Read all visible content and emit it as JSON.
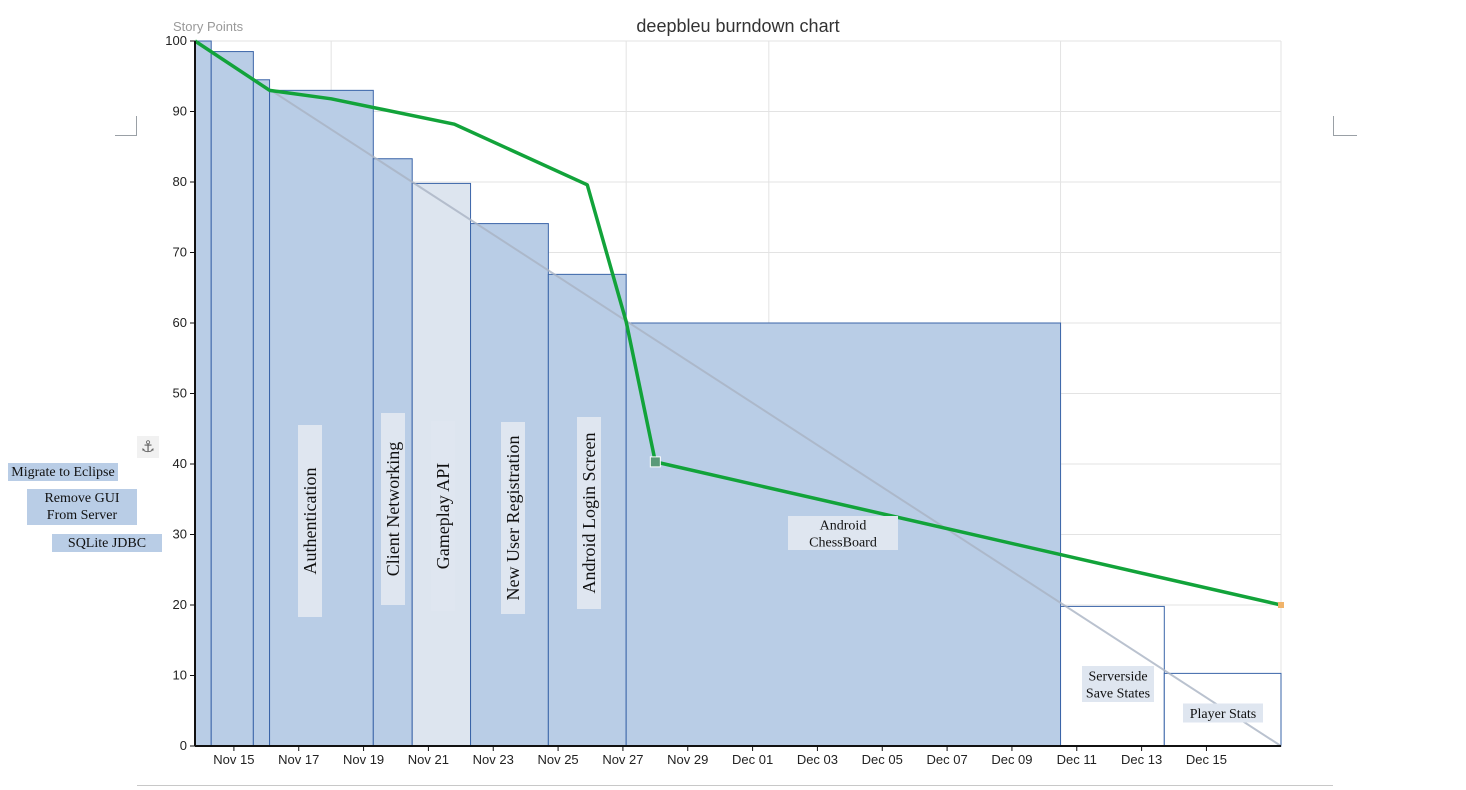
{
  "colors": {
    "bar_fill": "#b9cde6",
    "bar_light": "#dde5ef",
    "bar_stroke": "#3a64a8",
    "actual_line": "#12a33a",
    "ideal_line": "#aab4c4",
    "grid": "#e3e3e3",
    "label_box": "#dfe6f0",
    "side_box": "#b9cde6"
  },
  "icons": {
    "anchor": "anchor-icon"
  },
  "chart_data": {
    "type": "bar",
    "title": "deepbleu burndown chart",
    "ylabel": "Story Points",
    "xlabel": "",
    "ylim": [
      0,
      100
    ],
    "yticks": [
      0,
      10,
      20,
      30,
      40,
      50,
      60,
      70,
      80,
      90,
      100
    ],
    "xlim": [
      13.8,
      47.3
    ],
    "x_ticks": [
      {
        "day": 15,
        "label": "Nov 15"
      },
      {
        "day": 17,
        "label": "Nov 17"
      },
      {
        "day": 19,
        "label": "Nov 19"
      },
      {
        "day": 21,
        "label": "Nov 21"
      },
      {
        "day": 23,
        "label": "Nov 23"
      },
      {
        "day": 25,
        "label": "Nov 25"
      },
      {
        "day": 27,
        "label": "Nov 27"
      },
      {
        "day": 29,
        "label": "Nov 29"
      },
      {
        "day": 31,
        "label": "Dec 01"
      },
      {
        "day": 33,
        "label": "Dec 03"
      },
      {
        "day": 35,
        "label": "Dec 05"
      },
      {
        "day": 37,
        "label": "Dec 07"
      },
      {
        "day": 39,
        "label": "Dec 09"
      },
      {
        "day": 41,
        "label": "Dec 11"
      },
      {
        "day": 43,
        "label": "Dec 13"
      },
      {
        "day": 45,
        "label": "Dec 15"
      }
    ],
    "grid": true,
    "tasks": [
      {
        "name": "Migrate to Eclipse",
        "start": 13.8,
        "end": 14.3,
        "value": 100
      },
      {
        "name": "Remove GUI From Server",
        "start": 14.3,
        "end": 15.6,
        "value": 98.5
      },
      {
        "name": "SQLite JDBC",
        "start": 15.6,
        "end": 16.1,
        "value": 94.5
      },
      {
        "name": "Authentication",
        "start": 16.1,
        "end": 19.3,
        "value": 93
      },
      {
        "name": "Client Networking",
        "start": 19.3,
        "end": 20.5,
        "value": 83.3
      },
      {
        "name": "Gameplay API",
        "start": 20.5,
        "end": 22.3,
        "value": 79.8
      },
      {
        "name": "New User Registration",
        "start": 22.3,
        "end": 24.7,
        "value": 74.1
      },
      {
        "name": "Android Login Screen",
        "start": 24.7,
        "end": 27.1,
        "value": 66.9
      },
      {
        "name": "Android ChessBoard",
        "start": 27.1,
        "end": 40.5,
        "value": 60
      },
      {
        "name": "Serverside Save States",
        "start": 40.5,
        "end": 43.7,
        "value": 19.8
      },
      {
        "name": "Player Stats",
        "start": 43.7,
        "end": 47.3,
        "value": 10.3
      }
    ],
    "ideal_line": [
      {
        "x": 13.8,
        "y": 100
      },
      {
        "x": 47.3,
        "y": 0
      }
    ],
    "actual_line": [
      {
        "x": 13.8,
        "y": 100
      },
      {
        "x": 16.1,
        "y": 93
      },
      {
        "x": 18.0,
        "y": 91.8
      },
      {
        "x": 21.8,
        "y": 88.2
      },
      {
        "x": 25.9,
        "y": 79.6
      },
      {
        "x": 27.1,
        "y": 60.2
      },
      {
        "x": 28.0,
        "y": 40.3
      },
      {
        "x": 47.3,
        "y": 20
      }
    ]
  },
  "side_labels": [
    "Migrate to Eclipse",
    "Remove GUI\nFrom Server",
    "SQLite JDBC"
  ]
}
